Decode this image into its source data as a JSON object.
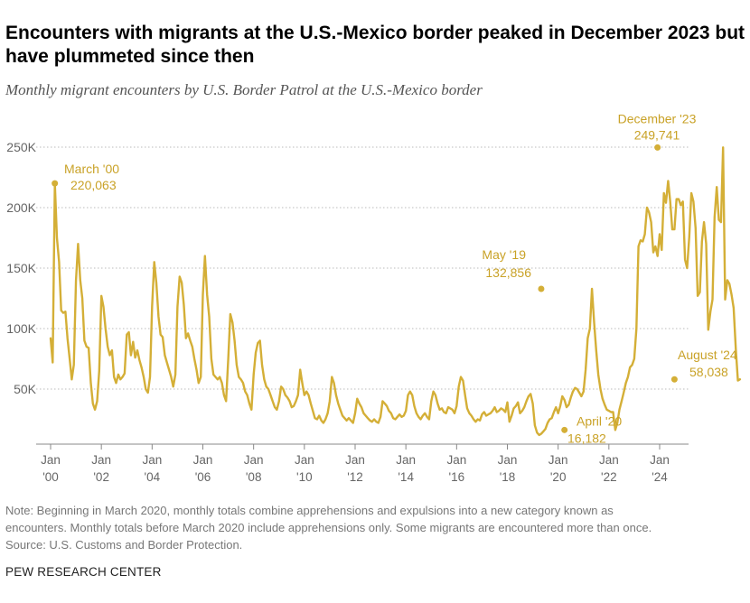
{
  "title": "Encounters with migrants at the U.S.-Mexico border peaked in December 2023 but have plummeted since then",
  "subtitle": "Monthly migrant encounters by U.S. Border Patrol at the U.S.-Mexico border",
  "note": {
    "line1": "Note: Beginning in March 2020, monthly totals combine apprehensions and expulsions into a new category known as",
    "line2": "encounters. Monthly totals before March 2020 include apprehensions only. Some migrants are encountered more than once.",
    "line3": "Source: U.S. Customs and Border Protection."
  },
  "org": "PEW RESEARCH CENTER",
  "colors": {
    "line": "#D4AF37",
    "label": "#C9A227",
    "grid": "#bbbbbb",
    "axis_text": "#666666"
  },
  "chart_data": {
    "type": "line",
    "title": "",
    "xlabel": "",
    "ylabel": "",
    "ylim": [
      0,
      260000
    ],
    "grid": true,
    "y_ticks": [
      {
        "value": 50000,
        "label": "50K"
      },
      {
        "value": 100000,
        "label": "100K"
      },
      {
        "value": 150000,
        "label": "150K"
      },
      {
        "value": 200000,
        "label": "200K"
      },
      {
        "value": 250000,
        "label": "250K"
      }
    ],
    "x_ticks": [
      {
        "year": 2000,
        "top": "Jan",
        "bottom": "'00"
      },
      {
        "year": 2002,
        "top": "Jan",
        "bottom": "'02"
      },
      {
        "year": 2004,
        "top": "Jan",
        "bottom": "'04"
      },
      {
        "year": 2006,
        "top": "Jan",
        "bottom": "'06"
      },
      {
        "year": 2008,
        "top": "Jan",
        "bottom": "'08"
      },
      {
        "year": 2010,
        "top": "Jan",
        "bottom": "'10"
      },
      {
        "year": 2012,
        "top": "Jan",
        "bottom": "'12"
      },
      {
        "year": 2014,
        "top": "Jan",
        "bottom": "'14"
      },
      {
        "year": 2016,
        "top": "Jan",
        "bottom": "'16"
      },
      {
        "year": 2018,
        "top": "Jan",
        "bottom": "'18"
      },
      {
        "year": 2020,
        "top": "Jan",
        "bottom": "'20"
      },
      {
        "year": 2022,
        "top": "Jan",
        "bottom": "'22"
      },
      {
        "year": 2024,
        "top": "Jan",
        "bottom": "'24"
      }
    ],
    "annotations": [
      {
        "date": "2000-03",
        "label": "March '00",
        "value_label": "220,063",
        "value": 220063
      },
      {
        "date": "2019-05",
        "label": "May '19",
        "value_label": "132,856",
        "value": 132856
      },
      {
        "date": "2020-04",
        "label": "April '20",
        "value_label": "16,182",
        "value": 16182
      },
      {
        "date": "2023-12",
        "label": "December '23",
        "value_label": "249,741",
        "value": 249741
      },
      {
        "date": "2024-08",
        "label": "August '24",
        "value_label": "58,038",
        "value": 58038
      }
    ],
    "series": [
      {
        "start": "2000-01",
        "values": [
          92000,
          72000,
          220063,
          175000,
          155000,
          115000,
          113000,
          114000,
          92000,
          75000,
          58000,
          70000,
          140000,
          170000,
          140000,
          125000,
          90000,
          85000,
          84000,
          55000,
          38000,
          33000,
          40000,
          65000,
          127000,
          118000,
          100000,
          85000,
          78000,
          82000,
          60000,
          55000,
          62000,
          58000,
          60000,
          63000,
          95000,
          97000,
          78000,
          89000,
          76000,
          82000,
          74000,
          68000,
          60000,
          50000,
          47000,
          60000,
          118000,
          155000,
          138000,
          110000,
          95000,
          93000,
          78000,
          72000,
          66000,
          60000,
          52000,
          62000,
          118000,
          143000,
          138000,
          120000,
          92000,
          96000,
          90000,
          85000,
          75000,
          66000,
          55000,
          60000,
          128000,
          160000,
          128000,
          110000,
          75000,
          62000,
          60000,
          58000,
          60000,
          55000,
          45000,
          40000,
          75000,
          112000,
          105000,
          90000,
          70000,
          60000,
          58000,
          55000,
          48000,
          45000,
          38000,
          33000,
          62000,
          80000,
          88000,
          90000,
          70000,
          58000,
          52000,
          50000,
          45000,
          40000,
          35000,
          33000,
          40000,
          52000,
          50000,
          45000,
          43000,
          40000,
          35000,
          36000,
          40000,
          45000,
          66000,
          55000,
          45000,
          48000,
          45000,
          38000,
          32000,
          26000,
          25000,
          28000,
          24000,
          22000,
          25000,
          30000,
          40000,
          60000,
          55000,
          45000,
          38000,
          33000,
          28000,
          26000,
          24000,
          26000,
          24000,
          22000,
          30000,
          42000,
          38000,
          35000,
          30000,
          28000,
          26000,
          24000,
          23000,
          25000,
          23000,
          22000,
          27000,
          40000,
          38000,
          36000,
          32000,
          30000,
          26000,
          25000,
          27000,
          29000,
          27000,
          28000,
          32000,
          45000,
          48000,
          45000,
          36000,
          30000,
          27000,
          25000,
          28000,
          30000,
          27000,
          25000,
          40000,
          48000,
          45000,
          38000,
          33000,
          34000,
          31000,
          30000,
          35000,
          34000,
          33000,
          30000,
          36000,
          52000,
          60000,
          57000,
          45000,
          34000,
          30000,
          28000,
          25000,
          23000,
          25000,
          24000,
          29000,
          31000,
          28000,
          29000,
          30000,
          32000,
          35000,
          31000,
          32000,
          34000,
          33000,
          31000,
          39000,
          23000,
          28000,
          34000,
          36000,
          39000,
          30000,
          32000,
          35000,
          40000,
          44000,
          46000,
          38000,
          20000,
          14000,
          12000,
          13000,
          15000,
          17000,
          22000,
          25000,
          26000,
          31000,
          35000,
          30000,
          36000,
          44000,
          41000,
          35000,
          37000,
          43000,
          48000,
          51000,
          50000,
          47000,
          44000,
          48000,
          66000,
          92000,
          100000,
          132856,
          105000,
          82000,
          62000,
          50000,
          42000,
          37000,
          33000,
          32000,
          31000,
          31000,
          16182,
          22000,
          33000,
          40000,
          47000,
          55000,
          60000,
          68000,
          70000,
          75000,
          100000,
          168000,
          173000,
          172000,
          178000,
          200000,
          196000,
          188000,
          163000,
          168000,
          160000,
          178000,
          165000,
          212000,
          204000,
          222000,
          205000,
          182000,
          182000,
          207000,
          207000,
          202000,
          205000,
          157000,
          150000,
          176000,
          212000,
          205000,
          183000,
          127000,
          130000,
          172000,
          188000,
          170000,
          99000,
          114000,
          124000,
          192000,
          217000,
          190000,
          188000,
          249741,
          124000,
          140000,
          137000,
          128000,
          117000,
          83000,
          57000,
          58038
        ]
      }
    ]
  }
}
